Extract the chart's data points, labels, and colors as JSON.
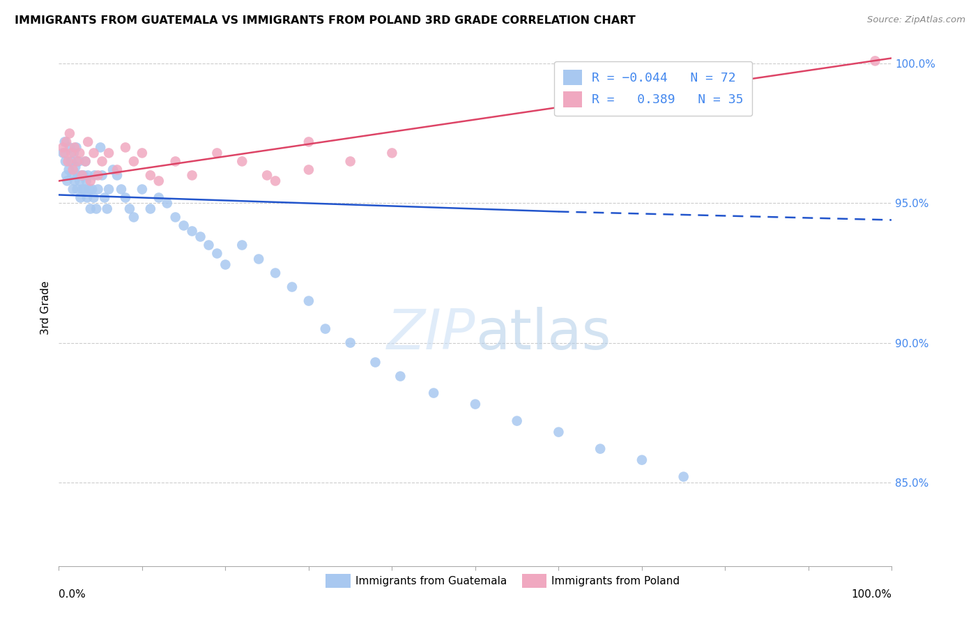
{
  "title": "IMMIGRANTS FROM GUATEMALA VS IMMIGRANTS FROM POLAND 3RD GRADE CORRELATION CHART",
  "source": "Source: ZipAtlas.com",
  "ylabel": "3rd Grade",
  "legend_label_blue": "Immigrants from Guatemala",
  "legend_label_pink": "Immigrants from Poland",
  "watermark": "ZIPatlas",
  "blue_color": "#a8c8f0",
  "pink_color": "#f0a8c0",
  "trendline_blue_color": "#2255cc",
  "trendline_pink_color": "#dd4466",
  "ytick_color": "#4488ee",
  "legend_text_color": "#4488ee",
  "grid_color": "#cccccc",
  "xlim": [
    0.0,
    1.0
  ],
  "ylim": [
    0.82,
    1.005
  ],
  "ytick_vals": [
    1.0,
    0.95,
    0.9,
    0.85
  ],
  "ytick_labels": [
    "100.0%",
    "95.0%",
    "90.0%",
    "85.0%"
  ],
  "blue_trendline_x": [
    0.0,
    0.6,
    1.0
  ],
  "blue_trendline_y": [
    0.953,
    0.947,
    0.944
  ],
  "blue_trendline_solid_end": 0.6,
  "pink_trendline_x": [
    0.0,
    1.0
  ],
  "pink_trendline_y": [
    0.958,
    1.002
  ],
  "blue_x": [
    0.005,
    0.007,
    0.008,
    0.009,
    0.01,
    0.012,
    0.013,
    0.015,
    0.016,
    0.017,
    0.018,
    0.019,
    0.02,
    0.021,
    0.022,
    0.023,
    0.024,
    0.025,
    0.026,
    0.027,
    0.028,
    0.03,
    0.031,
    0.032,
    0.033,
    0.034,
    0.035,
    0.037,
    0.038,
    0.04,
    0.042,
    0.043,
    0.045,
    0.047,
    0.05,
    0.052,
    0.055,
    0.058,
    0.06,
    0.065,
    0.07,
    0.075,
    0.08,
    0.085,
    0.09,
    0.1,
    0.11,
    0.12,
    0.13,
    0.14,
    0.15,
    0.16,
    0.17,
    0.18,
    0.19,
    0.2,
    0.22,
    0.24,
    0.26,
    0.28,
    0.3,
    0.32,
    0.35,
    0.38,
    0.41,
    0.45,
    0.5,
    0.55,
    0.6,
    0.65,
    0.7,
    0.75
  ],
  "blue_y": [
    0.968,
    0.972,
    0.965,
    0.96,
    0.958,
    0.962,
    0.97,
    0.965,
    0.96,
    0.955,
    0.968,
    0.958,
    0.963,
    0.97,
    0.955,
    0.96,
    0.965,
    0.958,
    0.952,
    0.96,
    0.955,
    0.96,
    0.955,
    0.965,
    0.958,
    0.952,
    0.96,
    0.955,
    0.948,
    0.955,
    0.952,
    0.96,
    0.948,
    0.955,
    0.97,
    0.96,
    0.952,
    0.948,
    0.955,
    0.962,
    0.96,
    0.955,
    0.952,
    0.948,
    0.945,
    0.955,
    0.948,
    0.952,
    0.95,
    0.945,
    0.942,
    0.94,
    0.938,
    0.935,
    0.932,
    0.928,
    0.935,
    0.93,
    0.925,
    0.92,
    0.915,
    0.905,
    0.9,
    0.893,
    0.888,
    0.882,
    0.878,
    0.872,
    0.868,
    0.862,
    0.858,
    0.852
  ],
  "pink_x": [
    0.005,
    0.007,
    0.009,
    0.011,
    0.013,
    0.015,
    0.017,
    0.019,
    0.022,
    0.025,
    0.028,
    0.032,
    0.035,
    0.038,
    0.042,
    0.047,
    0.052,
    0.06,
    0.07,
    0.08,
    0.09,
    0.1,
    0.11,
    0.12,
    0.14,
    0.16,
    0.19,
    0.22,
    0.26,
    0.3,
    0.35,
    0.4,
    0.3,
    0.25,
    0.98
  ],
  "pink_y": [
    0.97,
    0.968,
    0.972,
    0.965,
    0.975,
    0.968,
    0.962,
    0.97,
    0.965,
    0.968,
    0.96,
    0.965,
    0.972,
    0.958,
    0.968,
    0.96,
    0.965,
    0.968,
    0.962,
    0.97,
    0.965,
    0.968,
    0.96,
    0.958,
    0.965,
    0.96,
    0.968,
    0.965,
    0.958,
    0.962,
    0.965,
    0.968,
    0.972,
    0.96,
    1.001
  ]
}
